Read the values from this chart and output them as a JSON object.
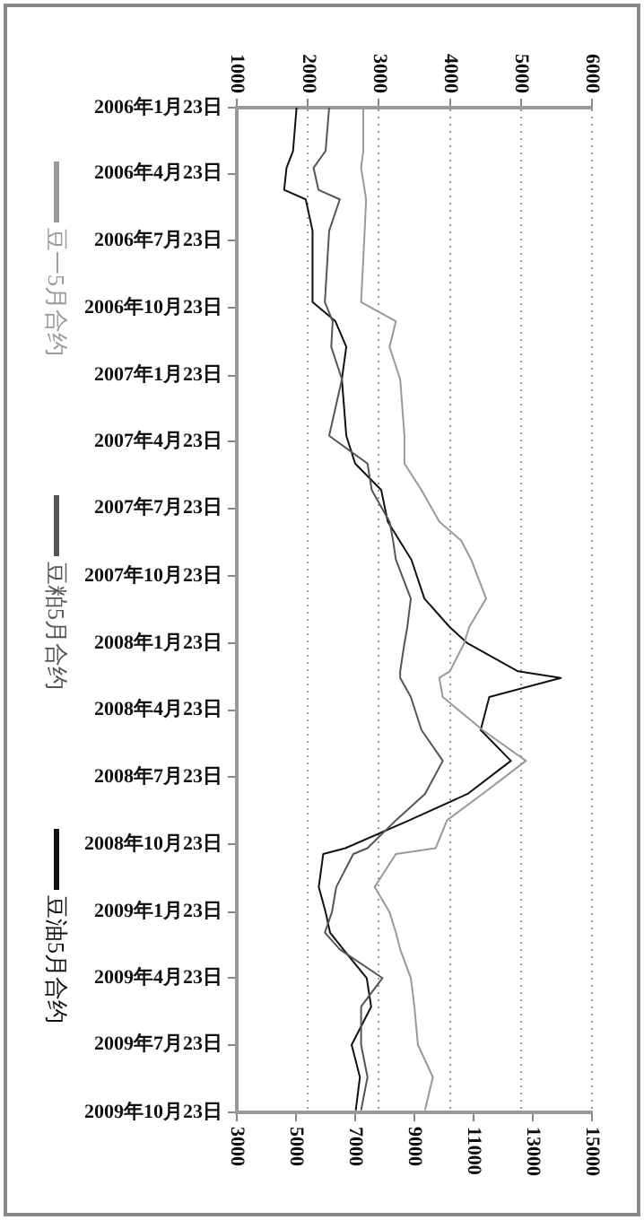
{
  "chart_data": {
    "type": "line",
    "orientation": "horizontal",
    "legend": "left",
    "grid": "x",
    "x": [
      "2006-01-23",
      "2006-03-23",
      "2006-04-15",
      "2006-05-15",
      "2006-05-28",
      "2006-07-10",
      "2006-10-15",
      "2006-11-10",
      "2006-12-15",
      "2007-01-28",
      "2007-04-15",
      "2007-05-23",
      "2007-06-28",
      "2007-08-10",
      "2007-09-05",
      "2007-10-01",
      "2007-11-23",
      "2008-01-01",
      "2008-01-23",
      "2008-03-01",
      "2008-03-10",
      "2008-04-05",
      "2008-05-20",
      "2008-07-01",
      "2008-08-15",
      "2008-09-20",
      "2008-10-28",
      "2008-11-05",
      "2008-12-20",
      "2009-01-23",
      "2009-02-20",
      "2009-03-15",
      "2009-04-23",
      "2009-06-01",
      "2009-07-23",
      "2009-09-05",
      "2009-10-20"
    ],
    "series": [
      {
        "name": "豆一5月合约",
        "color": "#999999",
        "axis": "x2",
        "values": [
          2780,
          2780,
          2750,
          2800,
          2820,
          2800,
          2750,
          3240,
          3150,
          3300,
          3360,
          3360,
          3600,
          3850,
          4160,
          4300,
          4510,
          4270,
          4200,
          4000,
          3850,
          3900,
          4460,
          5070,
          4460,
          3960,
          3800,
          3240,
          2940,
          3150,
          3240,
          3300,
          3450,
          3500,
          3550,
          3760,
          3650
        ]
      },
      {
        "name": "豆粕5月合约",
        "color": "#555555",
        "axis": "x2",
        "values": [
          2300,
          2250,
          2080,
          2150,
          2450,
          2300,
          2240,
          2350,
          2330,
          2480,
          2300,
          2840,
          2900,
          3150,
          3200,
          3240,
          3450,
          3400,
          3360,
          3300,
          3300,
          3450,
          3600,
          3900,
          3650,
          3240,
          2840,
          2640,
          2400,
          2340,
          2240,
          2450,
          3050,
          2750,
          2750,
          2840,
          2750
        ]
      },
      {
        "name": "豆油5月合约",
        "color": "#111111",
        "values": [
          5020,
          4900,
          4680,
          4600,
          5330,
          5560,
          5560,
          6330,
          6700,
          6550,
          6700,
          7000,
          7880,
          8100,
          8500,
          8900,
          9340,
          10200,
          10800,
          12500,
          13950,
          11530,
          11240,
          12260,
          10800,
          8830,
          6670,
          5920,
          5770,
          6000,
          6150,
          6600,
          7390,
          7540,
          6880,
          7160,
          7020
        ]
      }
    ],
    "xlim": [
      3000,
      15000
    ],
    "xticks": [
      3000,
      5000,
      7000,
      9000,
      11000,
      13000,
      15000
    ],
    "x2lim": [
      1000,
      6000
    ],
    "x2ticks": [
      1000,
      2000,
      3000,
      4000,
      5000,
      6000
    ],
    "ylim": [
      "2009-10-23",
      "2006-01-23"
    ],
    "yticks": [
      {
        "value": "2006-01-23",
        "label": "2006年1月23日"
      },
      {
        "value": "2006-04-23",
        "label": "2006年4月23日"
      },
      {
        "value": "2006-07-23",
        "label": "2006年7月23日"
      },
      {
        "value": "2006-10-23",
        "label": "2006年10月23日"
      },
      {
        "value": "2007-01-23",
        "label": "2007年1月23日"
      },
      {
        "value": "2007-04-23",
        "label": "2007年4月23日"
      },
      {
        "value": "2007-07-23",
        "label": "2007年7月23日"
      },
      {
        "value": "2007-10-23",
        "label": "2007年10月23日"
      },
      {
        "value": "2008-01-23",
        "label": "2008年1月23日"
      },
      {
        "value": "2008-04-23",
        "label": "2008年4月23日"
      },
      {
        "value": "2008-07-23",
        "label": "2008年7月23日"
      },
      {
        "value": "2008-10-23",
        "label": "2008年10月23日"
      },
      {
        "value": "2009-01-23",
        "label": "2009年1月23日"
      },
      {
        "value": "2009-04-23",
        "label": "2009年4月23日"
      },
      {
        "value": "2009-07-23",
        "label": "2009年7月23日"
      },
      {
        "value": "2009-10-23",
        "label": "2009年10月23日"
      }
    ]
  }
}
